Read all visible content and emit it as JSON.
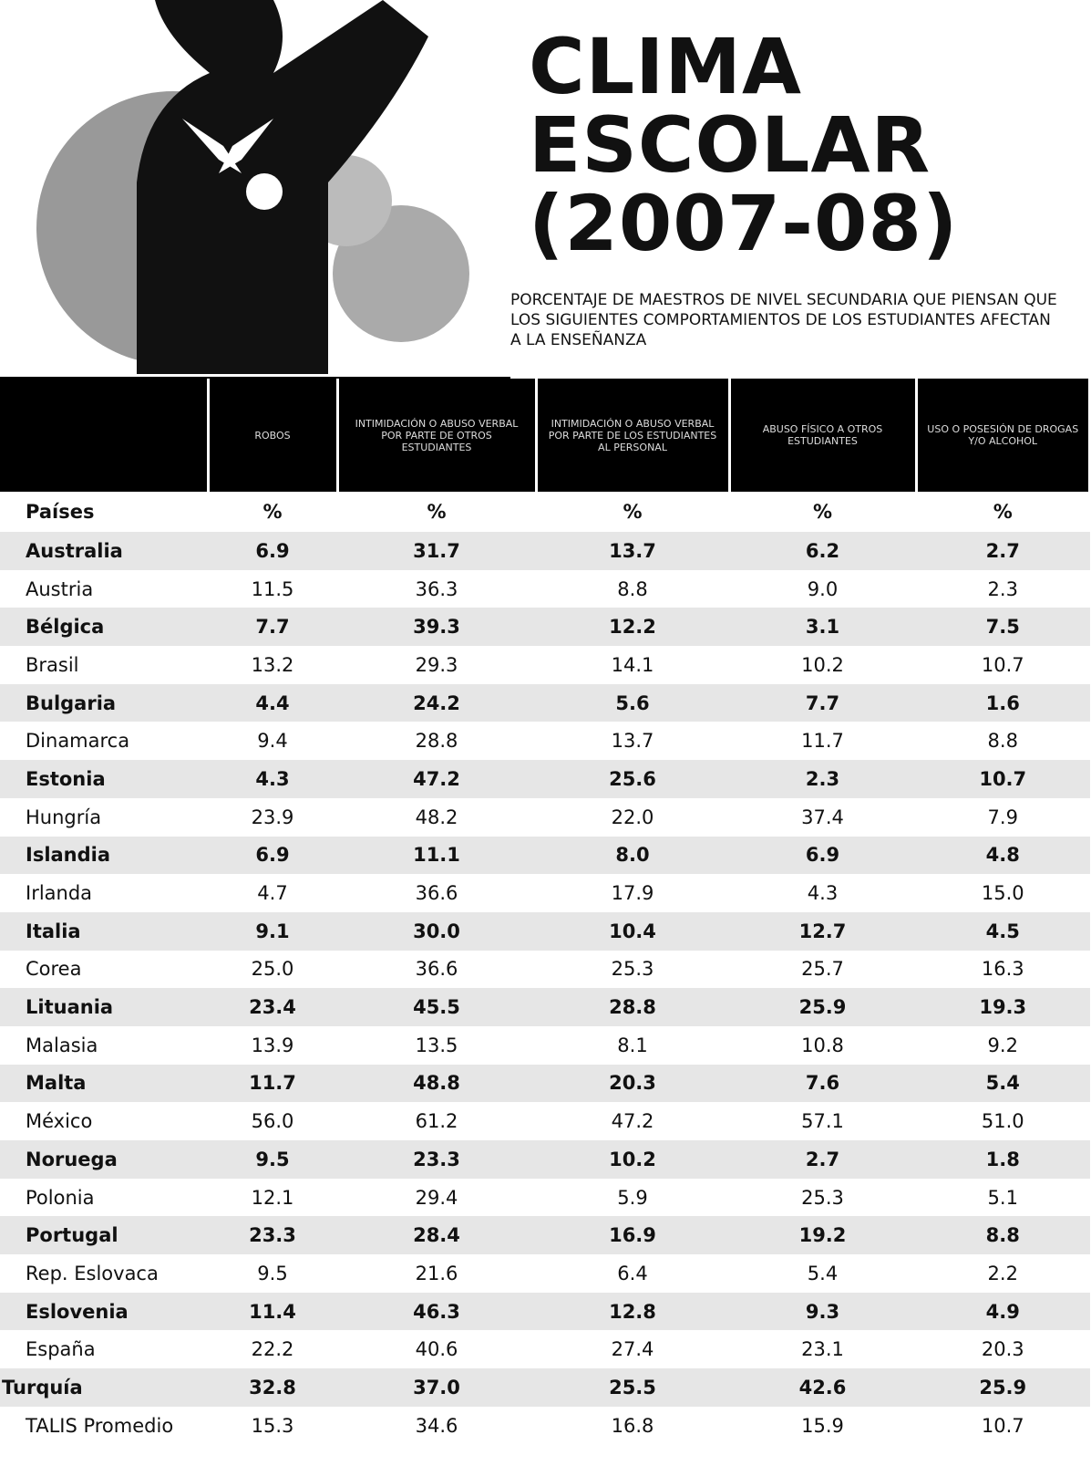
{
  "header": {
    "title": [
      "CLIMA",
      "ESCOLAR",
      "(2007-08)"
    ],
    "subtitle": "PORCENTAJE DE MAESTROS DE NIVEL SECUNDARIA QUE PIENSAN QUE LOS SIGUIENTES COMPORTAMIENTOS DE LOS ESTUDIANTES AFECTAN A LA ENSEÑANZA"
  },
  "table": {
    "columns": [
      "ROBOS",
      "INTIMIDACIÓN O ABUSO VERBAL POR PARTE DE OTROS ESTUDIANTES",
      "INTIMIDACIÓN O ABUSO VERBAL POR PARTE DE LOS ESTUDIANTES AL PERSONAL",
      "ABUSO FÍSICO A OTROS ESTUDIANTES",
      "USO O POSESIÓN DE DROGAS Y/O ALCOHOL"
    ],
    "unit_row": [
      "Países",
      "%",
      "%",
      "%",
      "%",
      "%"
    ],
    "rows": [
      [
        "Australia",
        "6.9",
        "31.7",
        "13.7",
        "6.2",
        "2.7"
      ],
      [
        "Austria",
        "11.5",
        "36.3",
        "8.8",
        "9.0",
        "2.3"
      ],
      [
        "Bélgica",
        "7.7",
        "39.3",
        "12.2",
        "3.1",
        "7.5"
      ],
      [
        "Brasil",
        "13.2",
        "29.3",
        "14.1",
        "10.2",
        "10.7"
      ],
      [
        "Bulgaria",
        "4.4",
        "24.2",
        "5.6",
        "7.7",
        "1.6"
      ],
      [
        "Dinamarca",
        "9.4",
        "28.8",
        "13.7",
        "11.7",
        "8.8"
      ],
      [
        "Estonia",
        "4.3",
        "47.2",
        "25.6",
        "2.3",
        "10.7"
      ],
      [
        "Hungría",
        "23.9",
        "48.2",
        "22.0",
        "37.4",
        "7.9"
      ],
      [
        "Islandia",
        "6.9",
        "11.1",
        "8.0",
        "6.9",
        "4.8"
      ],
      [
        "Irlanda",
        "4.7",
        "36.6",
        "17.9",
        "4.3",
        "15.0"
      ],
      [
        "Italia",
        "9.1",
        "30.0",
        "10.4",
        "12.7",
        "4.5"
      ],
      [
        "Corea",
        "25.0",
        "36.6",
        "25.3",
        "25.7",
        "16.3"
      ],
      [
        "Lituania",
        "23.4",
        "45.5",
        "28.8",
        "25.9",
        "19.3"
      ],
      [
        "Malasia",
        "13.9",
        "13.5",
        "8.1",
        "10.8",
        "9.2"
      ],
      [
        "Malta",
        "11.7",
        "48.8",
        "20.3",
        "7.6",
        "5.4"
      ],
      [
        "México",
        "56.0",
        "61.2",
        "47.2",
        "57.1",
        "51.0"
      ],
      [
        "Noruega",
        "9.5",
        "23.3",
        "10.2",
        "2.7",
        "1.8"
      ],
      [
        "Polonia",
        "12.1",
        "29.4",
        "5.9",
        "25.3",
        "5.1"
      ],
      [
        "Portugal",
        "23.3",
        "28.4",
        "16.9",
        "19.2",
        "8.8"
      ],
      [
        "Rep. Eslovaca",
        "9.5",
        "21.6",
        "6.4",
        "5.4",
        "2.2"
      ],
      [
        "Eslovenia",
        "11.4",
        "46.3",
        "12.8",
        "9.3",
        "4.9"
      ],
      [
        "España",
        "22.2",
        "40.6",
        "27.4",
        "23.1",
        "20.3"
      ],
      [
        "Turquía",
        "32.8",
        "37.0",
        "25.5",
        "42.6",
        "25.9"
      ],
      [
        "TALIS Promedio",
        "15.3",
        "34.6",
        "16.8",
        "15.9",
        "10.7"
      ]
    ]
  }
}
